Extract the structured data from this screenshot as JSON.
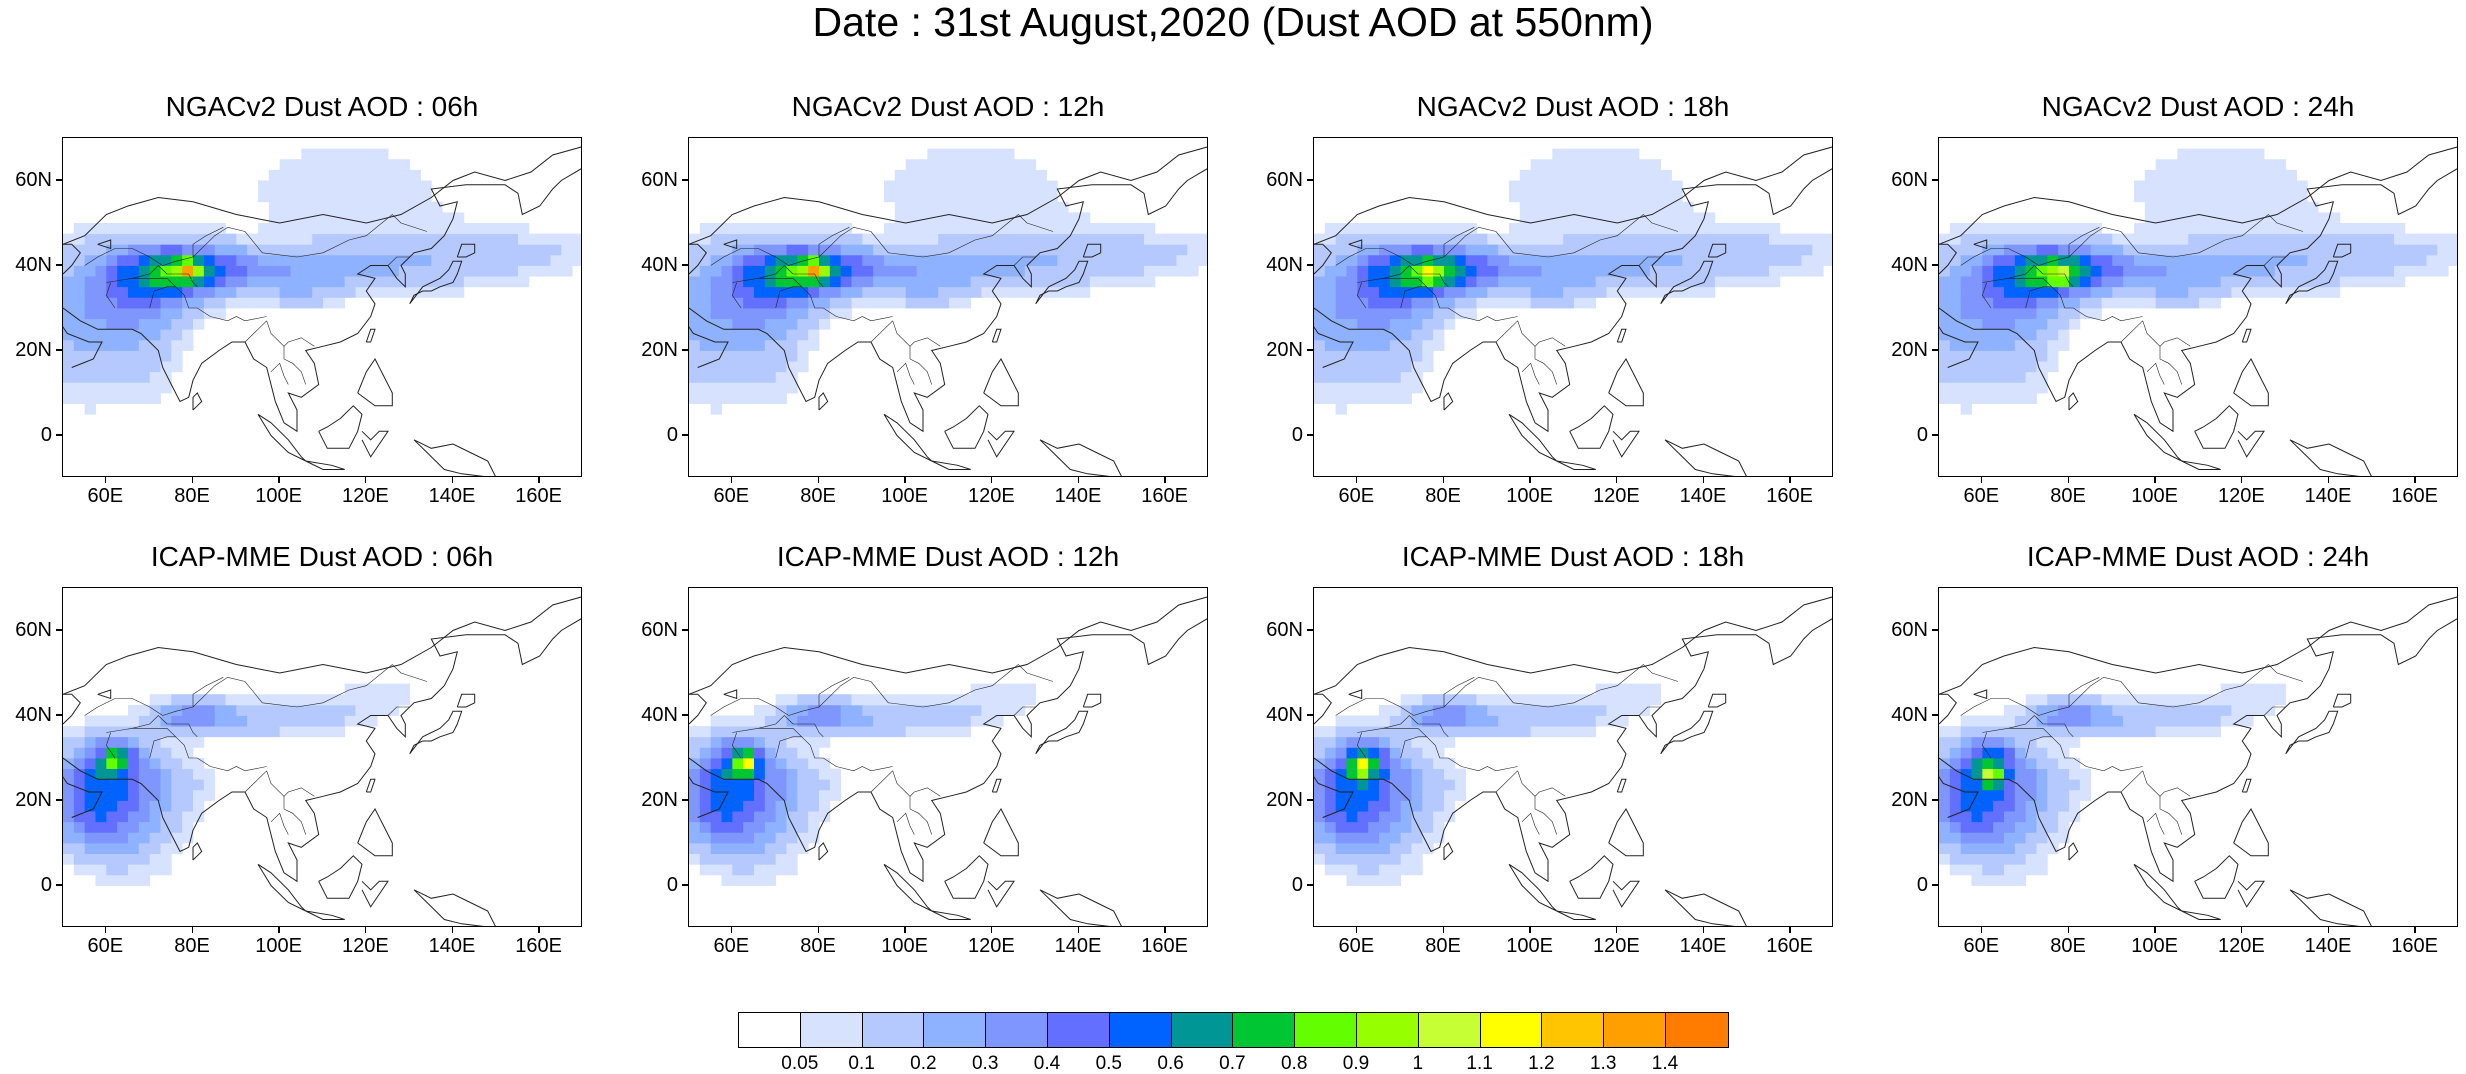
{
  "title": "Date : 31st August,2020 (Dust AOD at 550nm)",
  "panels": [
    {
      "title": "NGACv2 Dust AOD : 06h"
    },
    {
      "title": "NGACv2 Dust AOD : 12h"
    },
    {
      "title": "NGACv2 Dust AOD : 18h"
    },
    {
      "title": "NGACv2 Dust AOD : 24h"
    },
    {
      "title": "ICAP-MME Dust AOD : 06h"
    },
    {
      "title": "ICAP-MME Dust AOD : 12h"
    },
    {
      "title": "ICAP-MME Dust AOD : 18h"
    },
    {
      "title": "ICAP-MME Dust AOD : 24h"
    }
  ],
  "map": {
    "lon_range": [
      50,
      170
    ],
    "lat_range": [
      -10,
      70
    ],
    "x_ticks": [
      "60E",
      "80E",
      "100E",
      "120E",
      "140E",
      "160E"
    ],
    "y_ticks": [
      "60N",
      "40N",
      "20N",
      "0"
    ]
  },
  "colorbar": {
    "labels": [
      "0.05",
      "0.1",
      "0.2",
      "0.3",
      "0.4",
      "0.5",
      "0.6",
      "0.7",
      "0.8",
      "0.9",
      "1",
      "1.1",
      "1.2",
      "1.3",
      "1.4"
    ],
    "colors": [
      "#ffffff",
      "#d6e2ff",
      "#b5c9ff",
      "#8eb2ff",
      "#7f96ff",
      "#6370ff",
      "#0063ff",
      "#009696",
      "#00c633",
      "#63ff00",
      "#96ff00",
      "#c6ff33",
      "#ffff00",
      "#ffc600",
      "#ffa000",
      "#ff7c00",
      "#ff1900"
    ]
  }
}
